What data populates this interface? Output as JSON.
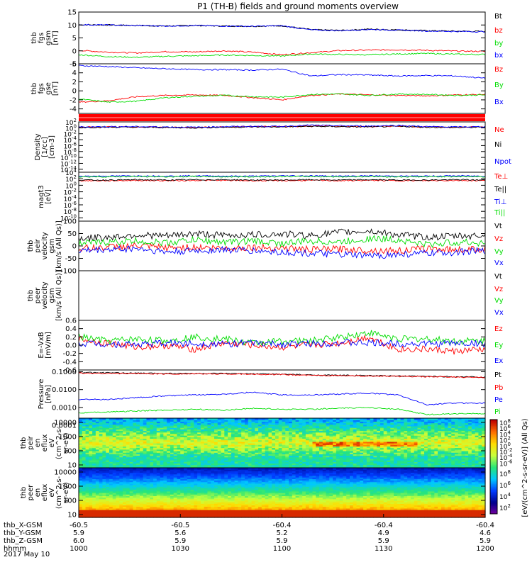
{
  "title": "P1 (TH-B) fields and ground moments overview",
  "date_label": "2017 May 10",
  "colors": {
    "black": "#000000",
    "red": "#ff0000",
    "green": "#00dd00",
    "blue": "#0000ff",
    "frame": "#000000"
  },
  "chart_data": [
    {
      "type": "line",
      "id": "fgs",
      "ylabel": [
        "thb",
        "fgs",
        "gsm",
        "[nT]"
      ],
      "ylim": [
        -5,
        15
      ],
      "yticks": [
        "15",
        "10",
        "5",
        "0",
        "-5"
      ],
      "ytick_values": [
        15,
        10,
        5,
        0,
        -5
      ],
      "series": [
        {
          "name": "Bt",
          "color": "black",
          "values": [
            10.1,
            10.0,
            9.8,
            9.6,
            9.8,
            9.6,
            9.5,
            9.7,
            8.2,
            7.9,
            8.4,
            8.1,
            7.8,
            7.6,
            7.5
          ]
        },
        {
          "name": "bz",
          "color": "red",
          "values": [
            0.2,
            -0.5,
            -0.8,
            -0.3,
            -0.4,
            0.0,
            -0.5,
            -1.5,
            -0.7,
            0.1,
            0.3,
            0.4,
            0.2,
            -0.1,
            -0.2
          ]
        },
        {
          "name": "by",
          "color": "green",
          "values": [
            -1.5,
            -2.2,
            -2.5,
            -2.1,
            -1.9,
            -1.6,
            -1.8,
            -2.0,
            -1.2,
            -1.4,
            -1.5,
            -1.2,
            -1.0,
            -1.3,
            -1.4
          ]
        },
        {
          "name": "bx",
          "color": "blue",
          "values": [
            10.1,
            10.0,
            9.8,
            9.6,
            9.8,
            9.6,
            9.5,
            9.7,
            8.1,
            7.8,
            8.3,
            8.0,
            7.7,
            7.5,
            7.4
          ]
        }
      ]
    },
    {
      "type": "line",
      "id": "fgs-gse",
      "ylabel": [
        "thb",
        "fgs",
        "gse",
        "[nT]"
      ],
      "ylim": [
        -5,
        6
      ],
      "yticks": [
        "6",
        "4",
        "2",
        "0",
        "-2",
        "-4"
      ],
      "ytick_values": [
        6,
        4,
        2,
        0,
        -2,
        -4
      ],
      "series": [
        {
          "name": "Bz",
          "color": "red",
          "values": [
            -2.5,
            -2.2,
            -1.3,
            -1.0,
            -0.9,
            -1.0,
            -1.5,
            -2.0,
            -1.0,
            -0.7,
            -0.9,
            -1.0,
            -1.1,
            -0.9,
            -0.8
          ]
        },
        {
          "name": "By",
          "color": "green",
          "values": [
            -1.8,
            -2.5,
            -2.3,
            -1.5,
            -1.2,
            -1.0,
            -1.3,
            -1.4,
            -0.8,
            -0.7,
            -1.0,
            -0.7,
            -0.8,
            -1.0,
            -0.9
          ]
        },
        {
          "name": "Bx",
          "color": "blue",
          "values": [
            5.6,
            5.4,
            5.1,
            4.9,
            4.7,
            4.7,
            4.6,
            4.8,
            3.3,
            3.6,
            3.5,
            3.3,
            3.4,
            3.3,
            2.8
          ]
        }
      ]
    },
    {
      "type": "line",
      "id": "density",
      "ylabel": [
        "Density",
        "[1/cc]",
        "[cm-3]"
      ],
      "log": true,
      "ylim": [
        -15,
        2
      ],
      "ytick_labels": [
        {
          "m": "10",
          "e": "2"
        },
        {
          "m": "10",
          "e": "0"
        },
        {
          "m": "10",
          "e": "-2"
        },
        {
          "m": "10",
          "e": "-4"
        },
        {
          "m": "10",
          "e": "-6"
        },
        {
          "m": "10",
          "e": "-8"
        },
        {
          "m": "10",
          "e": "-10"
        },
        {
          "m": "10",
          "e": "-12"
        },
        {
          "m": "10",
          "e": "-14"
        }
      ],
      "ytick_exponents": [
        2,
        0,
        -2,
        -4,
        -6,
        -8,
        -10,
        -12,
        -14
      ],
      "series": [
        {
          "name": "Ne",
          "color": "red",
          "values": [
            0.2,
            0.3,
            0.3,
            0.2,
            0.1,
            0.3,
            0.4,
            0.4,
            0.6,
            0.5,
            0.4,
            0.6,
            0.3,
            0.2,
            0.3
          ]
        },
        {
          "name": "Ni",
          "color": "black",
          "values": [
            0.1,
            0.2,
            0.2,
            0.1,
            0.0,
            0.2,
            0.3,
            0.3,
            0.5,
            0.4,
            0.3,
            0.5,
            0.2,
            0.1,
            0.2
          ]
        },
        {
          "name": "Npot",
          "color": "blue",
          "values": [
            0.3,
            0.4,
            0.4,
            0.3,
            0.2,
            0.4,
            0.5,
            0.5,
            0.9,
            0.7,
            0.6,
            0.8,
            0.4,
            0.3,
            0.4
          ]
        }
      ]
    },
    {
      "type": "line",
      "id": "temperature",
      "ylabel": [
        "magt3",
        "[eV]"
      ],
      "log": true,
      "ylim": [
        -11,
        4
      ],
      "ytick_labels": [
        {
          "m": "10",
          "e": "4"
        },
        {
          "m": "10",
          "e": "2"
        },
        {
          "m": "10",
          "e": "0"
        },
        {
          "m": "10",
          "e": "-2"
        },
        {
          "m": "10",
          "e": "-4"
        },
        {
          "m": "10",
          "e": "-6"
        },
        {
          "m": "10",
          "e": "-8"
        },
        {
          "m": "10",
          "e": "-10"
        }
      ],
      "ytick_exponents": [
        4,
        2,
        0,
        -2,
        -4,
        -6,
        -8,
        -10
      ],
      "series": [
        {
          "name": "Te⊥",
          "color": "red",
          "values": [
            1.4,
            1.4,
            1.5,
            1.4,
            1.5,
            1.5,
            1.4,
            1.4,
            1.5,
            1.4,
            1.5,
            1.4,
            1.4,
            1.5,
            1.4
          ]
        },
        {
          "name": "Te||",
          "color": "black",
          "values": [
            1.6,
            1.6,
            1.7,
            1.6,
            1.7,
            1.7,
            1.6,
            1.6,
            1.7,
            1.6,
            1.7,
            1.6,
            1.6,
            1.7,
            1.6
          ]
        },
        {
          "name": "Ti⊥",
          "color": "blue",
          "values": [
            2.8,
            2.8,
            2.9,
            2.8,
            2.9,
            2.8,
            2.8,
            2.9,
            2.9,
            2.8,
            2.9,
            2.8,
            2.8,
            2.9,
            2.8
          ]
        },
        {
          "name": "Ti||",
          "color": "green",
          "values": [
            2.6,
            2.6,
            2.7,
            2.6,
            2.7,
            2.6,
            2.6,
            2.7,
            2.7,
            2.6,
            2.7,
            2.6,
            2.6,
            2.7,
            2.6
          ]
        }
      ]
    },
    {
      "type": "line",
      "id": "peir-velocity",
      "ylabel": [
        "thb",
        "peir",
        "velocity",
        "gsm",
        "[km/s (All Qs)]"
      ],
      "ylim": [
        -100,
        100
      ],
      "yticks": [
        "100",
        "50",
        "0",
        "-50",
        "-100"
      ],
      "ytick_values": [
        100,
        50,
        0,
        -50,
        -100
      ],
      "series": [
        {
          "name": "Vt",
          "color": "black",
          "values": [
            30,
            35,
            45,
            40,
            50,
            42,
            45,
            48,
            42,
            55,
            60,
            45,
            35,
            40,
            42
          ]
        },
        {
          "name": "Vz",
          "color": "red",
          "values": [
            -10,
            -5,
            0,
            -8,
            -5,
            -10,
            -5,
            -8,
            -15,
            -12,
            -18,
            -20,
            -10,
            -15,
            -12
          ]
        },
        {
          "name": "Vy",
          "color": "green",
          "values": [
            10,
            15,
            20,
            12,
            25,
            15,
            20,
            10,
            20,
            15,
            30,
            25,
            5,
            15,
            12
          ]
        },
        {
          "name": "Vx",
          "color": "blue",
          "values": [
            -20,
            -15,
            -10,
            -25,
            -20,
            -15,
            -20,
            -25,
            -30,
            -35,
            -40,
            -35,
            -30,
            -25,
            -20
          ]
        }
      ]
    },
    {
      "type": "line",
      "id": "peer-velocity",
      "ylabel": [
        "thb",
        "peer",
        "velocity",
        "gsm",
        "[km/s (All Qs)]"
      ],
      "ylim": [
        -100,
        100
      ],
      "yticks": [],
      "ytick_values": [],
      "series": [
        {
          "name": "Vt",
          "color": "black",
          "values": []
        },
        {
          "name": "Vz",
          "color": "red",
          "values": []
        },
        {
          "name": "Vy",
          "color": "green",
          "values": []
        },
        {
          "name": "Vx",
          "color": "blue",
          "values": []
        }
      ]
    },
    {
      "type": "line",
      "id": "efield",
      "ylabel": [
        "E=-VxB",
        "[mV/m]"
      ],
      "ylim": [
        -0.6,
        0.6
      ],
      "yticks": [
        "0.6",
        "0.4",
        "0.2",
        "0.0",
        "-0.2",
        "-0.4",
        "-0.6"
      ],
      "ytick_values": [
        0.6,
        0.4,
        0.2,
        0.0,
        -0.2,
        -0.4,
        -0.6
      ],
      "series": [
        {
          "name": "Ez",
          "color": "red",
          "values": [
            0.15,
            0.05,
            -0.05,
            0.0,
            -0.1,
            0.05,
            0.0,
            -0.05,
            0.0,
            0.05,
            0.2,
            -0.1,
            -0.1,
            -0.15,
            -0.1
          ]
        },
        {
          "name": "Ey",
          "color": "green",
          "values": [
            0.2,
            0.1,
            0.15,
            0.1,
            0.2,
            0.15,
            0.05,
            0.1,
            0.1,
            0.2,
            0.3,
            0.15,
            0.15,
            0.1,
            0.1
          ]
        },
        {
          "name": "Ex",
          "color": "blue",
          "values": [
            0.05,
            0.03,
            0.02,
            0.05,
            0.04,
            0.03,
            0.05,
            0.02,
            0.04,
            0.06,
            0.05,
            0.04,
            0.03,
            0.05,
            0.04
          ]
        }
      ]
    },
    {
      "type": "line",
      "id": "pressure",
      "ylabel": [
        "Pressure",
        "[nPa]"
      ],
      "log": true,
      "ylim": [
        -3.6,
        -0.9
      ],
      "yticks": [
        "0.1000",
        "0.0100",
        "0.0010",
        "0.0001"
      ],
      "ytick_exponents": [
        -1,
        -2,
        -3,
        -4
      ],
      "series": [
        {
          "name": "Pt",
          "color": "black",
          "values": [
            -1.05,
            -1.06,
            -1.08,
            -1.09,
            -1.1,
            -1.1,
            -1.12,
            -1.14,
            -1.18,
            -1.2,
            -1.22,
            -1.24,
            -1.26,
            -1.28,
            -1.3
          ]
        },
        {
          "name": "Pb",
          "color": "red",
          "values": [
            -1.08,
            -1.09,
            -1.1,
            -1.12,
            -1.12,
            -1.12,
            -1.14,
            -1.16,
            -1.2,
            -1.22,
            -1.24,
            -1.26,
            -1.28,
            -1.3,
            -1.32
          ]
        },
        {
          "name": "Pe",
          "color": "blue",
          "values": [
            -2.55,
            -2.55,
            -2.45,
            -2.35,
            -2.3,
            -2.25,
            -2.15,
            -2.3,
            -2.3,
            -2.25,
            -2.2,
            -2.3,
            -2.85,
            -2.75,
            -2.75
          ]
        },
        {
          "name": "Pi",
          "color": "green",
          "values": [
            -3.3,
            -3.25,
            -3.2,
            -3.15,
            -3.1,
            -3.15,
            -3.05,
            -3.1,
            -3.1,
            -3.05,
            -3.0,
            -3.1,
            -3.4,
            -3.35,
            -3.35
          ]
        }
      ]
    },
    {
      "type": "heatmap",
      "id": "peir-spec",
      "ylabel": [
        "thb",
        "peir",
        "en",
        "eflux",
        "eV",
        "(cm^2-s-",
        "sr-eV)"
      ],
      "log": true,
      "ylim": [
        0.8,
        4.3
      ],
      "yticks": [
        "10000",
        "1000",
        "100",
        "10"
      ],
      "ytick_exponents": [
        4,
        3,
        2,
        1
      ]
    },
    {
      "type": "heatmap",
      "id": "peer-spec",
      "ylabel": [
        "thb",
        "peer",
        "en",
        "eflux",
        "eV",
        "(cm^2-s-",
        "sr-eV)"
      ],
      "log": true,
      "ylim": [
        0.8,
        4.3
      ],
      "yticks": [
        "10000",
        "1000",
        "100",
        "10"
      ],
      "ytick_exponents": [
        4,
        3,
        2,
        1
      ]
    }
  ],
  "colorbar": {
    "label": "[eV/(cm^2-s-sr-eV)] (All Qs)",
    "top_labels": [
      {
        "m": "10",
        "e": "8"
      },
      {
        "m": "10",
        "e": "6"
      },
      {
        "m": "10",
        "e": "4"
      },
      {
        "m": "10",
        "e": "2"
      },
      {
        "m": "10",
        "e": "0"
      },
      {
        "m": "10",
        "e": "-2"
      },
      {
        "m": "10",
        "e": "-4"
      },
      {
        "m": "10",
        "e": "-6"
      }
    ],
    "bottom_labels": [
      {
        "m": "10",
        "e": "8"
      },
      {
        "m": "10",
        "e": "6"
      },
      {
        "m": "10",
        "e": "4"
      },
      {
        "m": "10",
        "e": "2"
      }
    ]
  },
  "x_axis": {
    "row_labels": [
      "thb_X-GSM",
      "thb_Y-GSM",
      "thb_Z-GSM",
      "hhmm"
    ],
    "columns": [
      {
        "x": "-60.5",
        "y": "5.9",
        "z": "6.0",
        "t": "1000"
      },
      {
        "x": "-60.5",
        "y": "5.6",
        "z": "5.9",
        "t": "1030"
      },
      {
        "x": "-60.4",
        "y": "5.2",
        "z": "5.9",
        "t": "1100"
      },
      {
        "x": "-60.4",
        "y": "4.9",
        "z": "5.9",
        "t": "1130"
      },
      {
        "x": "-60.4",
        "y": "4.6",
        "z": "5.9",
        "t": "1200"
      }
    ]
  }
}
